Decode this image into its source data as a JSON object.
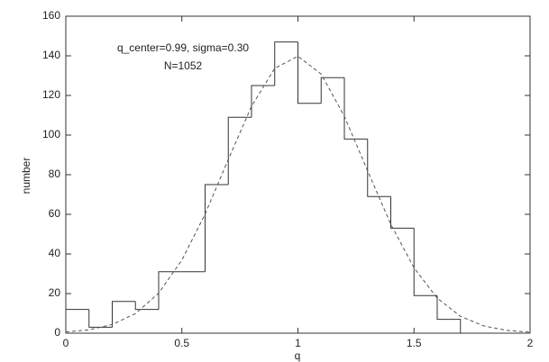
{
  "chart_data": {
    "type": "histogram",
    "xlabel": "q",
    "ylabel": "number",
    "annotations": [
      "q_center=0.99, sigma=0.30",
      "N=1052"
    ],
    "bins": [
      0,
      0.1,
      0.2,
      0.3,
      0.4,
      0.5,
      0.6,
      0.7,
      0.8,
      0.9,
      1.0,
      1.1,
      1.2,
      1.3,
      1.4,
      1.5,
      1.6,
      1.7
    ],
    "values": [
      12,
      3,
      16,
      12,
      31,
      31,
      75,
      109,
      125,
      147,
      116,
      129,
      98,
      69,
      53,
      19,
      7
    ],
    "color": "#333333",
    "fit": {
      "type": "line",
      "color": "#555555",
      "x": [
        0,
        0.1,
        0.2,
        0.3,
        0.4,
        0.5,
        0.6,
        0.7,
        0.8,
        0.9,
        1.0,
        1.1,
        1.2,
        1.3,
        1.4,
        1.5,
        1.6,
        1.7,
        1.8,
        1.9,
        2.0
      ],
      "values": [
        0.6,
        1.7,
        4.4,
        9.9,
        20.2,
        36.9,
        60.1,
        87.7,
        114.5,
        133.7,
        139.8,
        130.8,
        109.5,
        82.0,
        55.0,
        33.0,
        17.7,
        8.5,
        3.7,
        1.4,
        0.5
      ]
    },
    "xlim": [
      0,
      2
    ],
    "xticks": [
      0,
      0.5,
      1,
      1.5,
      2
    ],
    "ylim": [
      0,
      160
    ],
    "yticks": [
      0,
      20,
      40,
      60,
      80,
      100,
      120,
      140,
      160
    ],
    "grid": false
  }
}
